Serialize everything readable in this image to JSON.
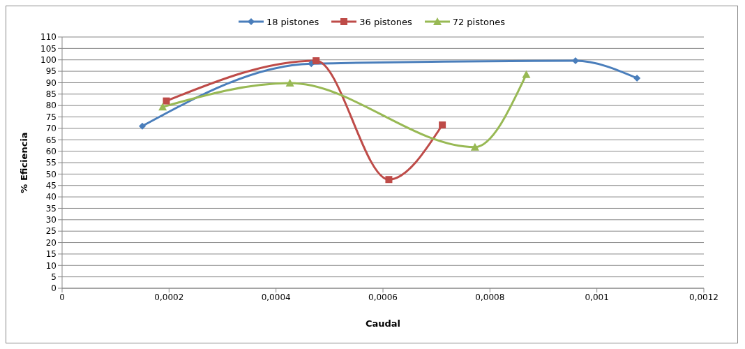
{
  "chart_data": {
    "type": "line",
    "xlabel": "Caudal",
    "ylabel": "% Eficiencia",
    "series": [
      {
        "name": "18 pistones",
        "color": "#4a7ebb",
        "marker": "diamond",
        "x": [
          0.00015,
          0.000466,
          0.00096,
          0.001075
        ],
        "values": [
          71,
          98.3,
          99.6,
          92
        ]
      },
      {
        "name": "36 pistones",
        "color": "#be4b48",
        "marker": "square",
        "x": [
          0.000195,
          0.000475,
          0.000611,
          0.000711
        ],
        "values": [
          82,
          99.6,
          47.6,
          71.5
        ]
      },
      {
        "name": "72 pistones",
        "color": "#98b954",
        "marker": "triangle",
        "x": [
          0.000188,
          0.000426,
          0.000772,
          0.000868
        ],
        "values": [
          79.4,
          89.8,
          61.8,
          93.6
        ]
      }
    ],
    "xlim": [
      0,
      0.0012
    ],
    "xticks": [
      0,
      {
        "value": 0.0002,
        "label": "0,0002"
      },
      {
        "value": 0.0004,
        "label": "0,0004"
      },
      {
        "value": 0.0006,
        "label": "0,0006"
      },
      {
        "value": 0.0008,
        "label": "0,0008"
      },
      {
        "value": 0.001,
        "label": "0,001"
      },
      {
        "value": 0.0012,
        "label": "0,0012"
      }
    ],
    "ylim": [
      0,
      110
    ],
    "yticks": [
      0,
      5,
      10,
      15,
      20,
      25,
      30,
      35,
      40,
      45,
      50,
      55,
      60,
      65,
      70,
      75,
      80,
      85,
      90,
      95,
      100,
      105,
      110
    ],
    "grid": "y",
    "legend": "top",
    "line_style": "solid"
  }
}
